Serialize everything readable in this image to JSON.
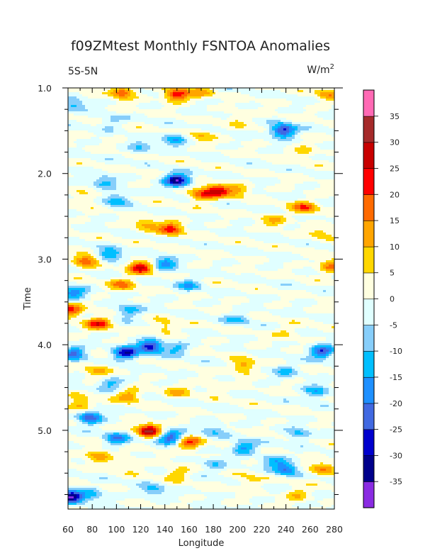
{
  "chart_data": {
    "type": "heatmap",
    "title": "f09ZMtest Monthly FSNTOA Anomalies",
    "left_label": "5S-5N",
    "units_base": "W/m",
    "units_exp": "2",
    "xlabel": "Longitude",
    "ylabel": "Time",
    "xlim": [
      60,
      280
    ],
    "ylim": [
      1.0,
      5.92
    ],
    "x_ticks": [
      60,
      80,
      100,
      120,
      140,
      160,
      180,
      200,
      220,
      240,
      260,
      280
    ],
    "y_ticks": [
      "1.0",
      "2.0",
      "3.0",
      "4.0",
      "5.0"
    ],
    "y_tick_values": [
      1.0,
      2.0,
      3.0,
      4.0,
      5.0
    ],
    "colorbar": {
      "levels": [
        -35,
        -30,
        -25,
        -20,
        -15,
        -10,
        -5,
        0,
        5,
        10,
        15,
        20,
        25,
        30,
        35
      ],
      "colors": [
        "#8a2be2",
        "#00008b",
        "#0000cd",
        "#4169e1",
        "#1e90ff",
        "#00bfff",
        "#87cefa",
        "#e0ffff",
        "#ffffe0",
        "#ffd700",
        "#ffa500",
        "#ff6a00",
        "#ff0000",
        "#c80000",
        "#a52a2a",
        "#ff69b4"
      ]
    },
    "features": [
      {
        "x": 105,
        "y": 1.05,
        "value": 20
      },
      {
        "x": 150,
        "y": 1.08,
        "value": 25
      },
      {
        "x": 170,
        "y": 1.05,
        "value": 10
      },
      {
        "x": 275,
        "y": 1.07,
        "value": 12
      },
      {
        "x": 65,
        "y": 1.2,
        "value": -12
      },
      {
        "x": 238,
        "y": 1.5,
        "value": -30
      },
      {
        "x": 148,
        "y": 1.6,
        "value": -15
      },
      {
        "x": 170,
        "y": 1.55,
        "value": 10
      },
      {
        "x": 120,
        "y": 1.7,
        "value": -10
      },
      {
        "x": 95,
        "y": 1.4,
        "value": -8
      },
      {
        "x": 200,
        "y": 1.35,
        "value": 6
      },
      {
        "x": 255,
        "y": 1.75,
        "value": 8
      },
      {
        "x": 150,
        "y": 2.08,
        "value": -35
      },
      {
        "x": 183,
        "y": 2.2,
        "value": 25
      },
      {
        "x": 170,
        "y": 2.25,
        "value": 18
      },
      {
        "x": 200,
        "y": 2.2,
        "value": 12
      },
      {
        "x": 255,
        "y": 2.4,
        "value": 18
      },
      {
        "x": 90,
        "y": 2.1,
        "value": -12
      },
      {
        "x": 75,
        "y": 2.3,
        "value": 8
      },
      {
        "x": 100,
        "y": 2.3,
        "value": -15
      },
      {
        "x": 145,
        "y": 2.65,
        "value": 22
      },
      {
        "x": 125,
        "y": 2.6,
        "value": 12
      },
      {
        "x": 230,
        "y": 2.55,
        "value": 10
      },
      {
        "x": 270,
        "y": 2.7,
        "value": 8
      },
      {
        "x": 75,
        "y": 3.02,
        "value": 20
      },
      {
        "x": 95,
        "y": 2.95,
        "value": -18
      },
      {
        "x": 120,
        "y": 3.1,
        "value": 25
      },
      {
        "x": 140,
        "y": 3.05,
        "value": -18
      },
      {
        "x": 105,
        "y": 3.3,
        "value": 15
      },
      {
        "x": 65,
        "y": 3.4,
        "value": -18
      },
      {
        "x": 160,
        "y": 3.3,
        "value": -12
      },
      {
        "x": 278,
        "y": 3.08,
        "value": 18
      },
      {
        "x": 62,
        "y": 3.6,
        "value": 22
      },
      {
        "x": 85,
        "y": 3.75,
        "value": 22
      },
      {
        "x": 110,
        "y": 3.6,
        "value": -15
      },
      {
        "x": 140,
        "y": 3.8,
        "value": 10
      },
      {
        "x": 200,
        "y": 3.7,
        "value": -10
      },
      {
        "x": 240,
        "y": 3.85,
        "value": 6
      },
      {
        "x": 108,
        "y": 4.1,
        "value": -30
      },
      {
        "x": 128,
        "y": 4.02,
        "value": -30
      },
      {
        "x": 65,
        "y": 4.1,
        "value": -22
      },
      {
        "x": 150,
        "y": 4.05,
        "value": -12
      },
      {
        "x": 205,
        "y": 4.25,
        "value": 15
      },
      {
        "x": 270,
        "y": 4.08,
        "value": -25
      },
      {
        "x": 240,
        "y": 4.3,
        "value": -10
      },
      {
        "x": 85,
        "y": 4.3,
        "value": 12
      },
      {
        "x": 95,
        "y": 4.45,
        "value": -12
      },
      {
        "x": 110,
        "y": 4.6,
        "value": 15
      },
      {
        "x": 70,
        "y": 4.7,
        "value": 15
      },
      {
        "x": 150,
        "y": 4.55,
        "value": 10
      },
      {
        "x": 265,
        "y": 4.55,
        "value": -15
      },
      {
        "x": 180,
        "y": 4.5,
        "value": 6
      },
      {
        "x": 78,
        "y": 4.85,
        "value": -25
      },
      {
        "x": 127,
        "y": 5.0,
        "value": 30
      },
      {
        "x": 145,
        "y": 5.08,
        "value": -25
      },
      {
        "x": 100,
        "y": 5.1,
        "value": -18
      },
      {
        "x": 160,
        "y": 5.15,
        "value": 20
      },
      {
        "x": 205,
        "y": 5.2,
        "value": -18
      },
      {
        "x": 250,
        "y": 5.05,
        "value": -12
      },
      {
        "x": 180,
        "y": 5.0,
        "value": -10
      },
      {
        "x": 85,
        "y": 5.3,
        "value": 15
      },
      {
        "x": 230,
        "y": 5.35,
        "value": -12
      },
      {
        "x": 270,
        "y": 5.45,
        "value": 15
      },
      {
        "x": 240,
        "y": 5.45,
        "value": -20
      },
      {
        "x": 180,
        "y": 5.4,
        "value": -10
      },
      {
        "x": 150,
        "y": 5.5,
        "value": 10
      },
      {
        "x": 62,
        "y": 5.78,
        "value": -35
      },
      {
        "x": 80,
        "y": 5.75,
        "value": -12
      },
      {
        "x": 130,
        "y": 5.7,
        "value": -12
      },
      {
        "x": 210,
        "y": 5.6,
        "value": 8
      },
      {
        "x": 110,
        "y": 5.4,
        "value": 8
      },
      {
        "x": 250,
        "y": 5.75,
        "value": 10
      }
    ]
  }
}
